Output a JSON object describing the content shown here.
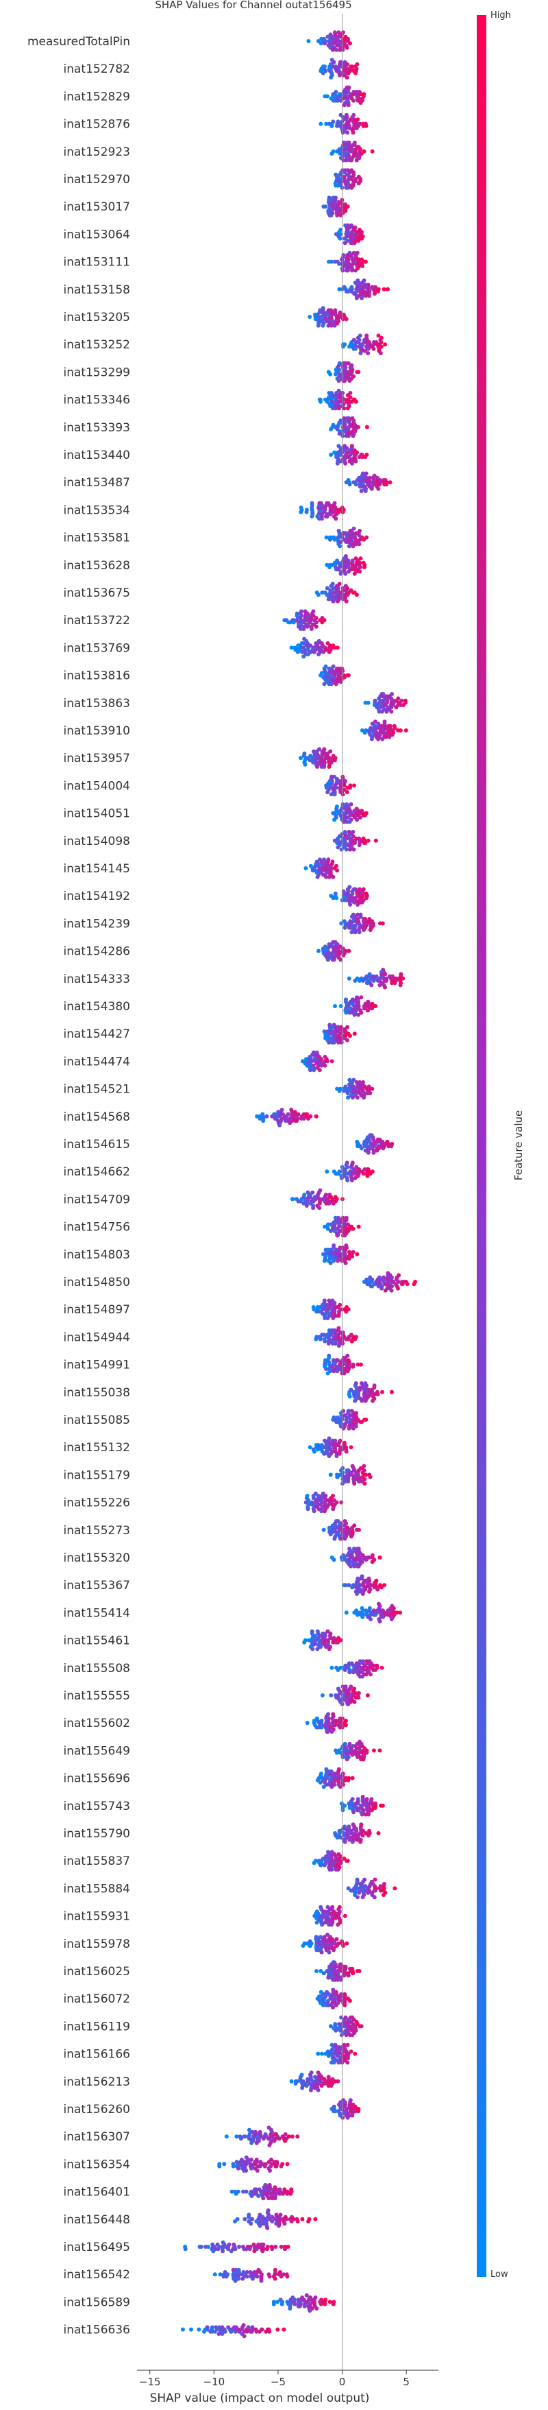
{
  "chart_data": {
    "type": "scatter",
    "title": "SHAP Values for Channel outat156495",
    "xlabel": "SHAP value (impact on model output)",
    "xlim": [
      -16,
      7.5
    ],
    "xticks": [
      -15,
      -10,
      -5,
      0,
      5
    ],
    "colorbar": {
      "label": "Feature value",
      "high_label": "High",
      "low_label": "Low",
      "high_color": "#ff0052",
      "low_color": "#008bfb"
    },
    "grid": false,
    "features": [
      {
        "name": "measuredTotalPin",
        "center": -0.6,
        "spread": 1.4
      },
      {
        "name": "inat152782",
        "center": -0.2,
        "spread": 1.2
      },
      {
        "name": "inat152829",
        "center": 0.4,
        "spread": 1.3
      },
      {
        "name": "inat152876",
        "center": 0.4,
        "spread": 1.3
      },
      {
        "name": "inat152923",
        "center": 0.6,
        "spread": 1.2
      },
      {
        "name": "inat152970",
        "center": 0.4,
        "spread": 1.1
      },
      {
        "name": "inat153017",
        "center": -0.5,
        "spread": 0.9
      },
      {
        "name": "inat153064",
        "center": 0.6,
        "spread": 1.0
      },
      {
        "name": "inat153111",
        "center": 0.4,
        "spread": 1.3
      },
      {
        "name": "inat153158",
        "center": 1.5,
        "spread": 1.5
      },
      {
        "name": "inat153205",
        "center": -1.0,
        "spread": 1.2
      },
      {
        "name": "inat153252",
        "center": 1.8,
        "spread": 1.4
      },
      {
        "name": "inat153299",
        "center": 0.2,
        "spread": 1.0
      },
      {
        "name": "inat153346",
        "center": -0.2,
        "spread": 1.1
      },
      {
        "name": "inat153393",
        "center": 0.4,
        "spread": 1.0
      },
      {
        "name": "inat153440",
        "center": 0.4,
        "spread": 1.2
      },
      {
        "name": "inat153487",
        "center": 2.0,
        "spread": 1.5
      },
      {
        "name": "inat153534",
        "center": -1.4,
        "spread": 1.3
      },
      {
        "name": "inat153581",
        "center": 0.6,
        "spread": 1.4
      },
      {
        "name": "inat153628",
        "center": 0.4,
        "spread": 1.2
      },
      {
        "name": "inat153675",
        "center": -0.4,
        "spread": 1.1
      },
      {
        "name": "inat153722",
        "center": -2.8,
        "spread": 1.4
      },
      {
        "name": "inat153769",
        "center": -2.0,
        "spread": 1.5
      },
      {
        "name": "inat153816",
        "center": -0.6,
        "spread": 1.0
      },
      {
        "name": "inat153863",
        "center": 3.5,
        "spread": 1.3
      },
      {
        "name": "inat153910",
        "center": 2.8,
        "spread": 1.3
      },
      {
        "name": "inat153957",
        "center": -1.8,
        "spread": 1.2
      },
      {
        "name": "inat154004",
        "center": -0.4,
        "spread": 1.1
      },
      {
        "name": "inat154051",
        "center": 0.6,
        "spread": 1.1
      },
      {
        "name": "inat154098",
        "center": 0.6,
        "spread": 1.3
      },
      {
        "name": "inat154145",
        "center": -1.4,
        "spread": 1.0
      },
      {
        "name": "inat154192",
        "center": 0.8,
        "spread": 1.2
      },
      {
        "name": "inat154239",
        "center": 1.4,
        "spread": 1.4
      },
      {
        "name": "inat154286",
        "center": -0.6,
        "spread": 1.0
      },
      {
        "name": "inat154333",
        "center": 3.0,
        "spread": 1.7
      },
      {
        "name": "inat154380",
        "center": 1.2,
        "spread": 1.2
      },
      {
        "name": "inat154427",
        "center": -0.4,
        "spread": 1.0
      },
      {
        "name": "inat154474",
        "center": -2.0,
        "spread": 1.0
      },
      {
        "name": "inat154521",
        "center": 1.2,
        "spread": 1.2
      },
      {
        "name": "inat154568",
        "center": -4.5,
        "spread": 1.9
      },
      {
        "name": "inat154615",
        "center": 2.5,
        "spread": 1.4
      },
      {
        "name": "inat154662",
        "center": 0.8,
        "spread": 1.2
      },
      {
        "name": "inat154709",
        "center": -2.0,
        "spread": 1.6
      },
      {
        "name": "inat154756",
        "center": -0.2,
        "spread": 1.0
      },
      {
        "name": "inat154803",
        "center": -0.2,
        "spread": 1.1
      },
      {
        "name": "inat154850",
        "center": 3.5,
        "spread": 1.8
      },
      {
        "name": "inat154897",
        "center": -0.8,
        "spread": 1.1
      },
      {
        "name": "inat154944",
        "center": -0.4,
        "spread": 1.4
      },
      {
        "name": "inat154991",
        "center": -0.2,
        "spread": 1.2
      },
      {
        "name": "inat155038",
        "center": 1.8,
        "spread": 1.4
      },
      {
        "name": "inat155085",
        "center": 0.6,
        "spread": 1.3
      },
      {
        "name": "inat155132",
        "center": -0.8,
        "spread": 1.3
      },
      {
        "name": "inat155179",
        "center": 0.8,
        "spread": 1.3
      },
      {
        "name": "inat155226",
        "center": -1.6,
        "spread": 1.4
      },
      {
        "name": "inat155273",
        "center": 0.0,
        "spread": 1.2
      },
      {
        "name": "inat155320",
        "center": 1.2,
        "spread": 1.4
      },
      {
        "name": "inat155367",
        "center": 1.6,
        "spread": 1.2
      },
      {
        "name": "inat155414",
        "center": 3.0,
        "spread": 1.6
      },
      {
        "name": "inat155461",
        "center": -1.4,
        "spread": 1.2
      },
      {
        "name": "inat155508",
        "center": 1.4,
        "spread": 1.4
      },
      {
        "name": "inat155555",
        "center": 0.2,
        "spread": 1.2
      },
      {
        "name": "inat155602",
        "center": -1.0,
        "spread": 1.2
      },
      {
        "name": "inat155649",
        "center": 0.8,
        "spread": 1.3
      },
      {
        "name": "inat155696",
        "center": -0.6,
        "spread": 1.1
      },
      {
        "name": "inat155743",
        "center": 1.5,
        "spread": 1.3
      },
      {
        "name": "inat155790",
        "center": 0.8,
        "spread": 1.3
      },
      {
        "name": "inat155837",
        "center": -0.8,
        "spread": 1.0
      },
      {
        "name": "inat155884",
        "center": 2.0,
        "spread": 1.4
      },
      {
        "name": "inat155931",
        "center": -1.0,
        "spread": 1.2
      },
      {
        "name": "inat155978",
        "center": -1.2,
        "spread": 1.4
      },
      {
        "name": "inat156025",
        "center": -0.4,
        "spread": 1.3
      },
      {
        "name": "inat156072",
        "center": -0.6,
        "spread": 1.2
      },
      {
        "name": "inat156119",
        "center": 0.4,
        "spread": 1.2
      },
      {
        "name": "inat156166",
        "center": -0.2,
        "spread": 1.1
      },
      {
        "name": "inat156213",
        "center": -2.0,
        "spread": 1.5
      },
      {
        "name": "inat156260",
        "center": 0.2,
        "spread": 1.0
      },
      {
        "name": "inat156307",
        "center": -6.0,
        "spread": 2.1
      },
      {
        "name": "inat156354",
        "center": -7.0,
        "spread": 2.4
      },
      {
        "name": "inat156401",
        "center": -6.0,
        "spread": 2.1
      },
      {
        "name": "inat156448",
        "center": -5.5,
        "spread": 2.3
      },
      {
        "name": "inat156495",
        "center": -8.0,
        "spread": 3.5
      },
      {
        "name": "inat156542",
        "center": -7.0,
        "spread": 2.8
      },
      {
        "name": "inat156589",
        "center": -3.0,
        "spread": 2.0
      },
      {
        "name": "inat156636",
        "center": -8.0,
        "spread": 3.2
      }
    ]
  }
}
